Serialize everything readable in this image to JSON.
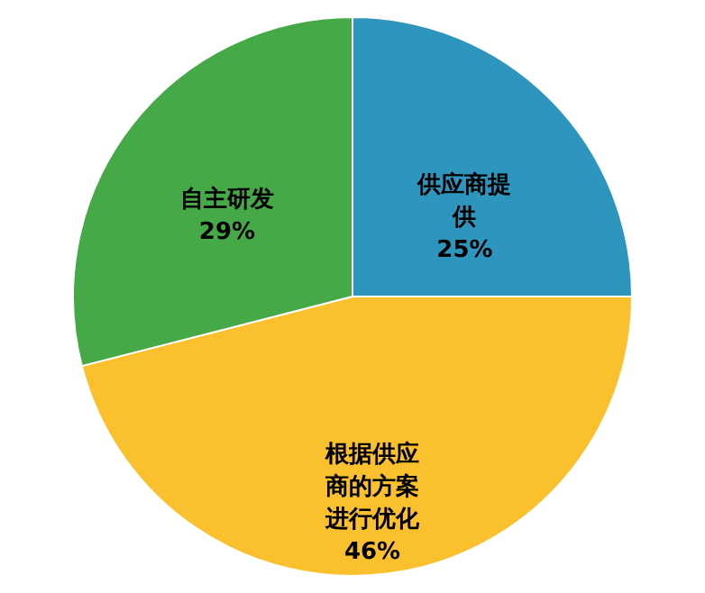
{
  "chart_data": {
    "type": "pie",
    "categories": [
      "供应商提供",
      "根据供应商的方案进行优化",
      "自主研发"
    ],
    "values": [
      25,
      46,
      29
    ],
    "colors": [
      "#2e96be",
      "#fbc02d",
      "#46a947"
    ],
    "value_labels": [
      "25%",
      "46%",
      "29%"
    ]
  }
}
